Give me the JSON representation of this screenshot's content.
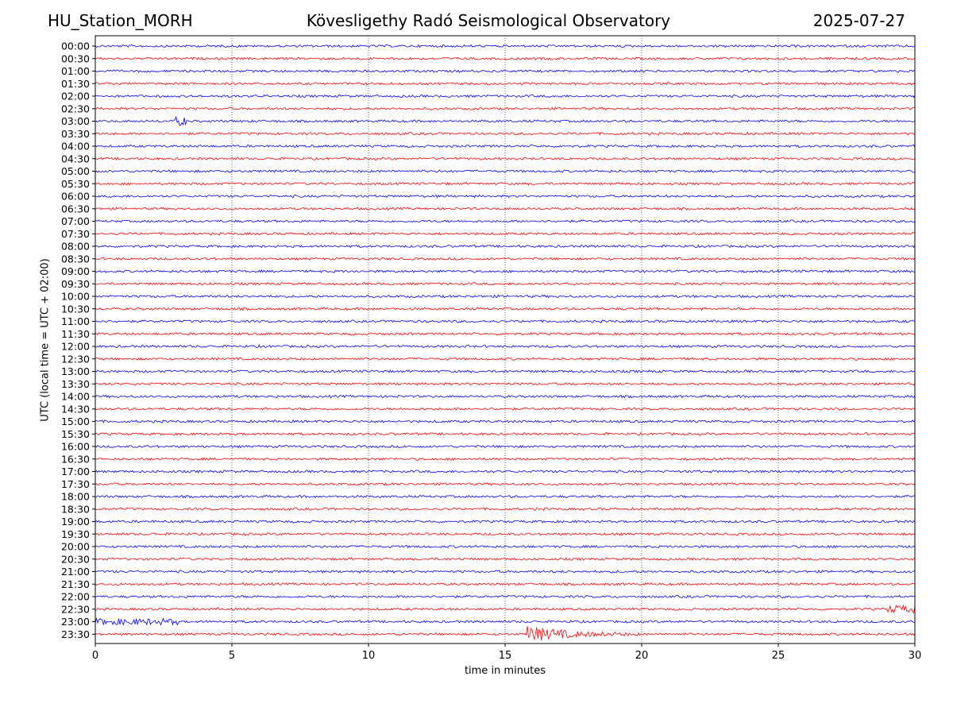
{
  "header": {
    "station": "HU_Station_MORH",
    "observatory": "Kövesligethy Radó Seismological Observatory",
    "date": "2025-07-27"
  },
  "chart_data": {
    "type": "line",
    "title": "Kövesligethy Radó Seismological Observatory",
    "xlabel": "time in minutes",
    "ylabel": "UTC (local time = UTC + 02:00)",
    "xlim": [
      0,
      30
    ],
    "xticks": [
      "0",
      "5",
      "10",
      "15",
      "20",
      "25",
      "30"
    ],
    "grid": "vertical dotted lines at every 5 minutes",
    "row_labels": [
      "00:00",
      "00:30",
      "01:00",
      "01:30",
      "02:00",
      "02:30",
      "03:00",
      "03:30",
      "04:00",
      "04:30",
      "05:00",
      "05:30",
      "06:00",
      "06:30",
      "07:00",
      "07:30",
      "08:00",
      "08:30",
      "09:00",
      "09:30",
      "10:00",
      "10:30",
      "11:00",
      "11:30",
      "12:00",
      "12:30",
      "13:00",
      "13:30",
      "14:00",
      "14:30",
      "15:00",
      "15:30",
      "16:00",
      "16:30",
      "17:00",
      "17:30",
      "18:00",
      "18:30",
      "19:00",
      "19:30",
      "20:00",
      "20:30",
      "21:00",
      "21:30",
      "22:00",
      "22:30",
      "23:00",
      "23:30"
    ],
    "trace_colors": [
      "#0000ff",
      "#ff0000"
    ],
    "events": [
      {
        "row": "03:00",
        "start_min": 2.9,
        "end_min": 3.3,
        "amplitude": 2.0
      },
      {
        "row": "22:30",
        "start_min": 29.0,
        "end_min": 30.0,
        "amplitude": 1.6
      },
      {
        "row": "23:00",
        "start_min": 0.0,
        "end_min": 3.0,
        "amplitude": 1.2
      },
      {
        "row": "23:30",
        "start_min": 15.8,
        "end_min": 20.0,
        "amplitude": 4.5
      }
    ]
  }
}
